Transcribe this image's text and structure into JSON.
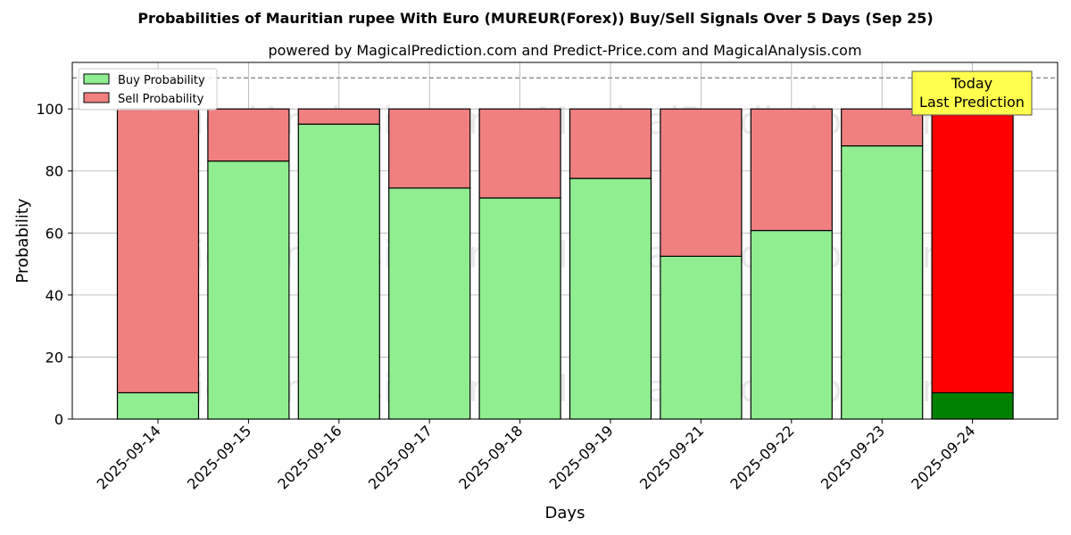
{
  "chart_data": {
    "type": "bar",
    "stacked": true,
    "title": "Probabilities of Mauritian rupee With Euro (MUREUR(Forex)) Buy/Sell Signals Over 5 Days (Sep 25)",
    "subtitle": "powered by MagicalPrediction.com and Predict-Price.com and MagicalAnalysis.com",
    "xlabel": "Days",
    "ylabel": "Probability",
    "ylim": [
      0,
      115
    ],
    "yticks": [
      0,
      20,
      40,
      60,
      80,
      100
    ],
    "reference_line": 110,
    "grid": true,
    "legend_position": "top-left",
    "categories": [
      "2025-09-14",
      "2025-09-15",
      "2025-09-16",
      "2025-09-17",
      "2025-09-18",
      "2025-09-19",
      "2025-09-21",
      "2025-09-22",
      "2025-09-23",
      "2025-09-24"
    ],
    "series": [
      {
        "name": "Buy Probability",
        "color": "#90ee90",
        "highlight_color": "#008000",
        "values": [
          8.5,
          83.2,
          95.1,
          74.5,
          71.3,
          77.6,
          52.5,
          60.8,
          88.1,
          8.5
        ]
      },
      {
        "name": "Sell Probability",
        "color": "#f08080",
        "highlight_color": "#ff0000",
        "values": [
          91.5,
          16.8,
          4.9,
          25.5,
          28.7,
          22.4,
          47.5,
          39.2,
          11.9,
          91.5
        ]
      }
    ],
    "highlight_index": 9,
    "annotation": {
      "lines": [
        "Today",
        "Last Prediction"
      ],
      "color": "#ffff4d"
    },
    "watermarks": [
      "MagicalAnalysis.com",
      "MagicalPrediction.com"
    ]
  }
}
